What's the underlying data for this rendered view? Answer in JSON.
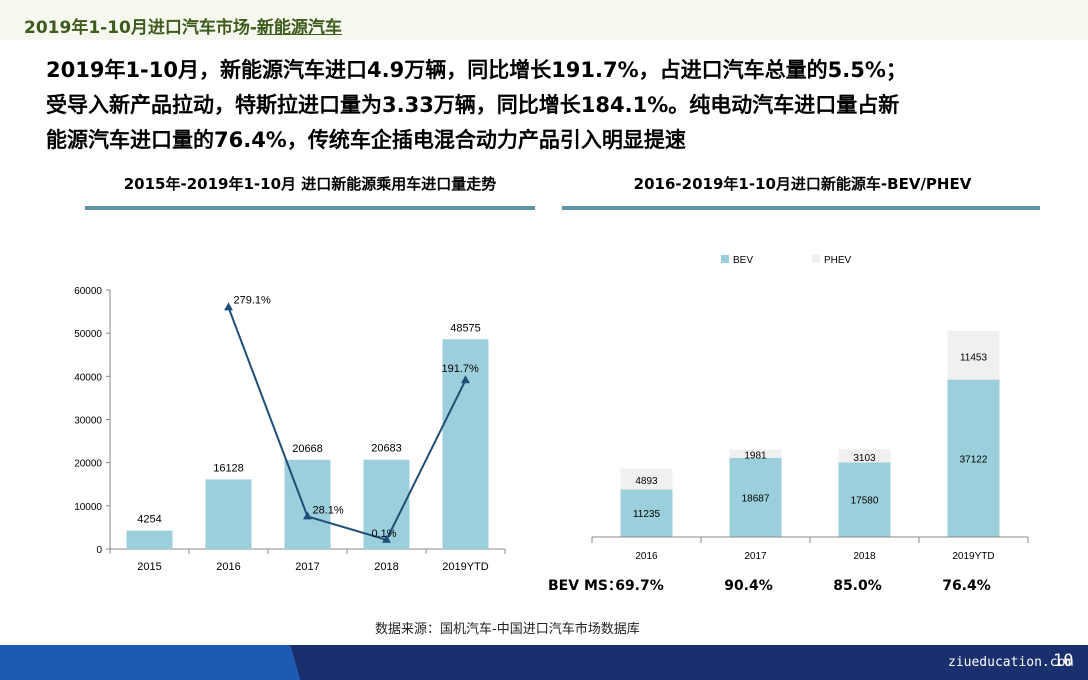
{
  "header": {
    "title_prefix": "2019年1-10月进口汽车市场-",
    "title_highlight": "新能源汽车"
  },
  "summary": {
    "line1": "2019年1-10月，新能源汽车进口4.9万辆，同比增长191.7%，占进口汽车总量的5.5%；",
    "line2": "受导入新产品拉动，特斯拉进口量为3.33万辆，同比增长184.1%。纯电动汽车进口量占新",
    "line3": "能源汽车进口量的76.4%，传统车企插电混合动力产品引入明显提速"
  },
  "left_chart_title": "2015年-2019年1-10月 进口新能源乘用车进口量走势",
  "right_chart_title": "2016-2019年1-10月进口新能源车-BEV/PHEV",
  "chart_data": [
    {
      "type": "bar",
      "categories": [
        "2015",
        "2016",
        "2017",
        "2018",
        "2019YTD"
      ],
      "values": [
        4254,
        16128,
        20668,
        20683,
        48575
      ],
      "value_labels": [
        "4254",
        "16128",
        "20668",
        "20683",
        "48575"
      ],
      "ylim": [
        0,
        60000
      ],
      "yticks": [
        "0",
        "10000",
        "20000",
        "30000",
        "40000",
        "50000",
        "60000"
      ],
      "growth_line": {
        "categories": [
          "2016",
          "2017",
          "2018",
          "2019YTD"
        ],
        "values": [
          279.1,
          28.1,
          0.1,
          191.7
        ],
        "labels": [
          "279.1%",
          "28.1%",
          "0.1%",
          "191.7%"
        ]
      },
      "colors": {
        "bar": "#9ccfdc",
        "line": "#1f4e79"
      }
    },
    {
      "type": "bar",
      "stacked": true,
      "categories": [
        "2016",
        "2017",
        "2018",
        "2019YTD"
      ],
      "series": [
        {
          "name": "BEV",
          "values": [
            11235,
            18687,
            17580,
            37122
          ],
          "labels": [
            "11235",
            "18687",
            "17580",
            "37122"
          ]
        },
        {
          "name": "PHEV",
          "values": [
            4893,
            1981,
            3103,
            11453
          ],
          "labels": [
            "4893",
            "1981",
            "3103",
            "11453"
          ]
        }
      ],
      "legend": "top",
      "colors": {
        "BEV": "#9ccfdc",
        "PHEV": "#f0f0f0"
      },
      "ms_label": "BEV MS：",
      "ms_values": [
        "69.7%",
        "90.4%",
        "85.0%",
        "76.4%"
      ]
    }
  ],
  "source": "数据来源：国机汽车-中国进口汽车市场数据库",
  "footer": {
    "watermark": "ziueducation.com",
    "page": "10"
  }
}
